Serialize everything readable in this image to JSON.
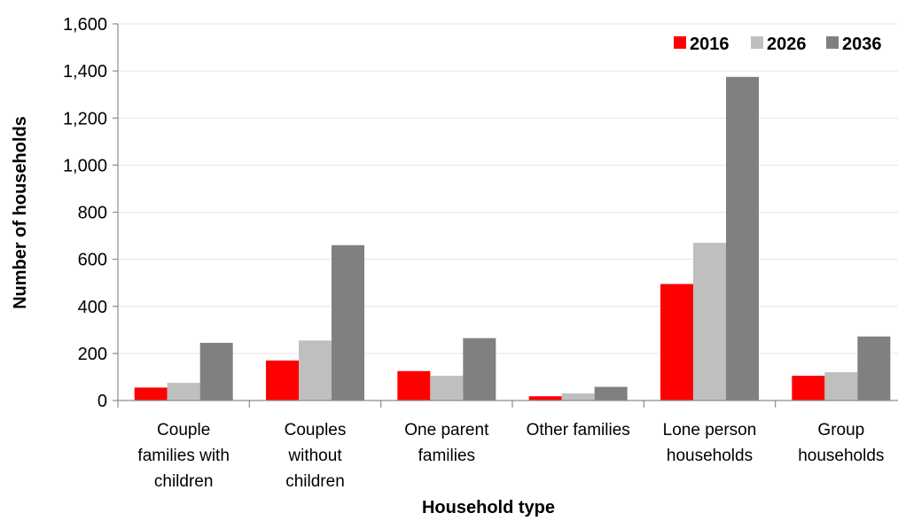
{
  "chart_data": {
    "type": "bar",
    "xlabel": "Household type",
    "ylabel": "Number of households",
    "ylim": [
      0,
      1600
    ],
    "yticks": [
      0,
      200,
      400,
      600,
      800,
      1000,
      1200,
      1400,
      1600
    ],
    "ytick_labels": [
      "0",
      "200",
      "400",
      "600",
      "800",
      "1,000",
      "1,200",
      "1,400",
      "1,600"
    ],
    "grid": true,
    "legend_position": "top-right",
    "categories": [
      [
        "Couple",
        "families with",
        "children"
      ],
      [
        "Couples",
        "without",
        "children"
      ],
      [
        "One parent",
        "families"
      ],
      [
        "Other families"
      ],
      [
        "Lone person",
        "households"
      ],
      [
        "Group",
        "households"
      ]
    ],
    "series": [
      {
        "name": "2016",
        "color": "#ff0000",
        "values": [
          55,
          170,
          125,
          18,
          495,
          105
        ]
      },
      {
        "name": "2026",
        "color": "#bfbfbf",
        "values": [
          75,
          255,
          105,
          30,
          670,
          120
        ]
      },
      {
        "name": "2036",
        "color": "#808080",
        "values": [
          245,
          660,
          265,
          58,
          1375,
          272
        ]
      }
    ]
  }
}
